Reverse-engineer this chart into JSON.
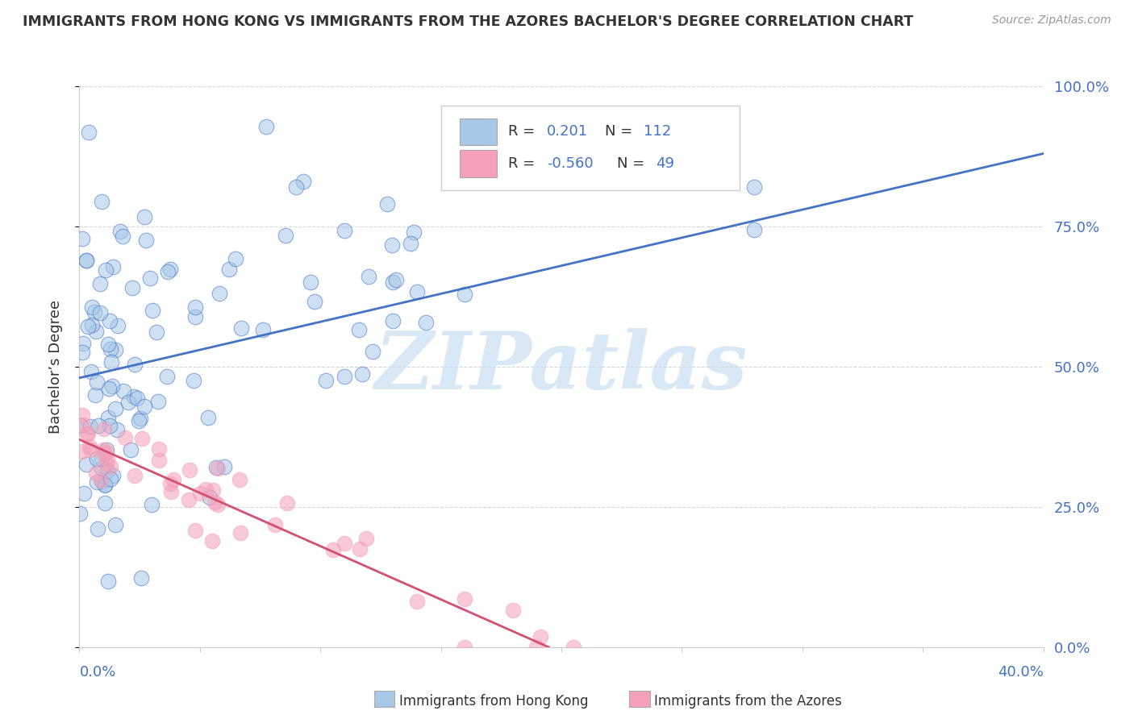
{
  "title": "IMMIGRANTS FROM HONG KONG VS IMMIGRANTS FROM THE AZORES BACHELOR'S DEGREE CORRELATION CHART",
  "source": "Source: ZipAtlas.com",
  "ylabel": "Bachelor’s Degree",
  "ytick_vals": [
    0,
    25,
    50,
    75,
    100
  ],
  "xmin": 0,
  "xmax": 40,
  "ymin": 0,
  "ymax": 100,
  "color_blue": "#a8c8e8",
  "color_pink": "#f4a0b8",
  "line_color_blue": "#4472c4",
  "line_color_pink": "#d45070",
  "watermark_color": "#c8dff0",
  "blue_intercept": 48.0,
  "blue_slope": 1.0,
  "pink_intercept": 37.0,
  "pink_slope": -1.9,
  "background": "#ffffff",
  "grid_color": "#d0d8e0",
  "tick_color": "#4472c4",
  "title_color": "#333333",
  "source_color": "#999999",
  "legend_text_color_black": "#333333",
  "legend_text_color_blue": "#4472c4"
}
